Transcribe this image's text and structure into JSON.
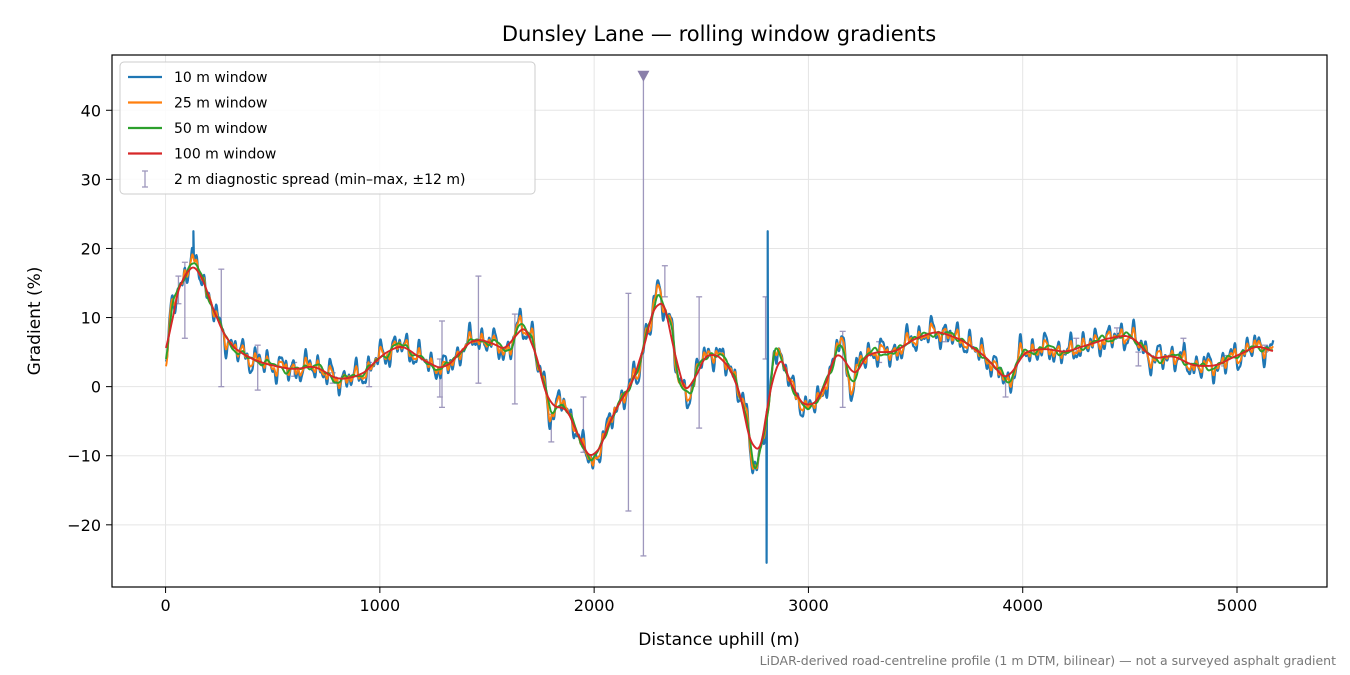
{
  "chart_data": {
    "type": "line",
    "title": "Dunsley Lane — rolling window gradients",
    "xlabel": "Distance uphill (m)",
    "ylabel": "Gradient (%)",
    "xlim": [
      -250,
      5420
    ],
    "ylim": [
      -29,
      48
    ],
    "x_ticks": [
      0,
      1000,
      2000,
      3000,
      4000,
      5000
    ],
    "y_ticks": [
      -20,
      -10,
      0,
      10,
      20,
      30,
      40
    ],
    "x_tick_labels": [
      "0",
      "1000",
      "2000",
      "3000",
      "4000",
      "5000"
    ],
    "y_tick_labels": [
      "−20",
      "−10",
      "0",
      "10",
      "20",
      "30",
      "40"
    ],
    "grid": true,
    "legend_position": "top-left",
    "footnote": "LiDAR-derived road-centreline profile (1 m DTM, bilinear) — not a surveyed asphalt gradient",
    "base_profile": {
      "x": [
        0,
        30,
        60,
        100,
        130,
        160,
        200,
        250,
        300,
        350,
        400,
        450,
        500,
        600,
        700,
        750,
        800,
        900,
        950,
        1000,
        1100,
        1200,
        1250,
        1300,
        1350,
        1400,
        1450,
        1500,
        1550,
        1600,
        1650,
        1700,
        1750,
        1800,
        1850,
        1900,
        1950,
        2000,
        2050,
        2100,
        2150,
        2200,
        2250,
        2300,
        2350,
        2400,
        2450,
        2500,
        2550,
        2600,
        2650,
        2700,
        2750,
        2800,
        2850,
        2900,
        2950,
        3000,
        3050,
        3100,
        3150,
        3200,
        3250,
        3300,
        3400,
        3500,
        3600,
        3700,
        3800,
        3900,
        3930,
        4000,
        4100,
        4200,
        4300,
        4400,
        4500,
        4550,
        4600,
        4700,
        4800,
        4900,
        5000,
        5100,
        5170
      ],
      "y": [
        2,
        12,
        14,
        17,
        18,
        17,
        13,
        9,
        6,
        5,
        4,
        3.5,
        3,
        2.5,
        3,
        2,
        1,
        1.5,
        2.5,
        4.5,
        6,
        4,
        3,
        2.5,
        4,
        6,
        7,
        6.5,
        6,
        5,
        9,
        8,
        2,
        -4,
        -2,
        -5,
        -9,
        -11,
        -7,
        -3,
        -1,
        2,
        8,
        14,
        10,
        0,
        -1,
        4,
        5,
        4,
        2,
        -3,
        -12,
        -6,
        6,
        2,
        -2,
        -3,
        -2,
        2,
        7,
        0,
        4,
        5,
        5,
        7,
        8,
        7,
        5,
        2,
        0.5,
        5,
        5.5,
        5,
        6,
        7,
        7.5,
        6,
        4,
        4.5,
        3,
        3,
        4.5,
        6,
        5
      ]
    },
    "series": [
      {
        "name": "10 m window",
        "color": "#1f77b4",
        "smoothing_window_m": 10
      },
      {
        "name": "25 m window",
        "color": "#ff7f0e",
        "smoothing_window_m": 25
      },
      {
        "name": "50 m window",
        "color": "#2ca02c",
        "smoothing_window_m": 50
      },
      {
        "name": "100 m window",
        "color": "#d62728",
        "smoothing_window_m": 100
      }
    ],
    "spikes": [
      {
        "x": 2810,
        "y": 22.5,
        "series": "10 m window"
      },
      {
        "x": 2805,
        "y": -25.5,
        "series": "10 m window"
      },
      {
        "x": 130,
        "y": 22.5,
        "series": "10 m window"
      }
    ],
    "errorbars": {
      "name": "2 m diagnostic spread (min–max, ±12 m)",
      "color": "#9e97bd",
      "points": [
        {
          "x": 60,
          "low": 12,
          "high": 16
        },
        {
          "x": 90,
          "low": 7,
          "high": 18
        },
        {
          "x": 260,
          "low": 0,
          "high": 17
        },
        {
          "x": 430,
          "low": -0.5,
          "high": 6
        },
        {
          "x": 600,
          "low": 1.5,
          "high": 3.5
        },
        {
          "x": 780,
          "low": 0.5,
          "high": 2
        },
        {
          "x": 950,
          "low": 0,
          "high": 3.5
        },
        {
          "x": 1280,
          "low": -1.5,
          "high": 4
        },
        {
          "x": 1290,
          "low": -3,
          "high": 9.5
        },
        {
          "x": 1460,
          "low": 0.5,
          "high": 16
        },
        {
          "x": 1630,
          "low": -2.5,
          "high": 10.5
        },
        {
          "x": 1800,
          "low": -8,
          "high": -4
        },
        {
          "x": 1950,
          "low": -9.5,
          "high": -1.5
        },
        {
          "x": 2160,
          "low": -18,
          "high": 13.5
        },
        {
          "x": 2230,
          "low": -24.5,
          "high": 45
        },
        {
          "x": 2330,
          "low": 13,
          "high": 17.5
        },
        {
          "x": 2490,
          "low": -6,
          "high": 13
        },
        {
          "x": 2800,
          "low": 4,
          "high": 13
        },
        {
          "x": 3160,
          "low": -3,
          "high": 8
        },
        {
          "x": 3330,
          "low": 3.5,
          "high": 6.5
        },
        {
          "x": 3640,
          "low": 6.5,
          "high": 8
        },
        {
          "x": 3920,
          "low": -1.5,
          "high": 1.5
        },
        {
          "x": 4250,
          "low": 5,
          "high": 7
        },
        {
          "x": 4440,
          "low": 7,
          "high": 8.5
        },
        {
          "x": 4540,
          "low": 3,
          "high": 5
        },
        {
          "x": 4750,
          "low": 5,
          "high": 7
        },
        {
          "x": 4940,
          "low": 3,
          "high": 4.5
        },
        {
          "x": 5130,
          "low": 5,
          "high": 6
        }
      ],
      "clipped_top_marker": {
        "x": 2230,
        "y": 45
      }
    }
  }
}
